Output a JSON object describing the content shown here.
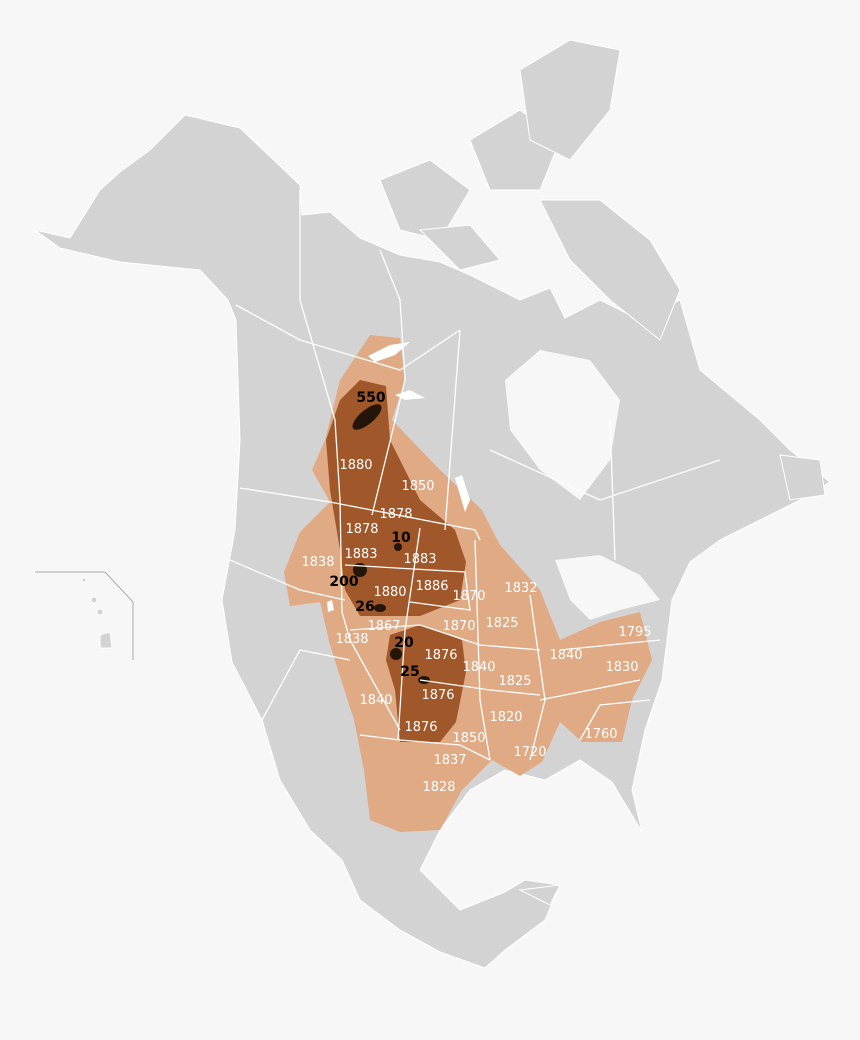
{
  "colors": {
    "background": "#f7f7f7",
    "land": "#d3d3d3",
    "historic_range": "#e0aa85",
    "late_range": "#a0572a",
    "remaining_herds": "#231508",
    "borders": "#ffffff"
  },
  "herd_counts": [
    "550",
    "10",
    "200",
    "26",
    "20",
    "25"
  ],
  "extirpation_years": [
    "1880",
    "1850",
    "1878",
    "1878",
    "1883",
    "1883",
    "1886",
    "1880",
    "1870",
    "1832",
    "1867",
    "1870",
    "1825",
    "1838",
    "1838",
    "1876",
    "1840",
    "1825",
    "1876",
    "1840",
    "1876",
    "1820",
    "1850",
    "1720",
    "1837",
    "1828",
    "1840",
    "1830",
    "1795",
    "1760"
  ]
}
